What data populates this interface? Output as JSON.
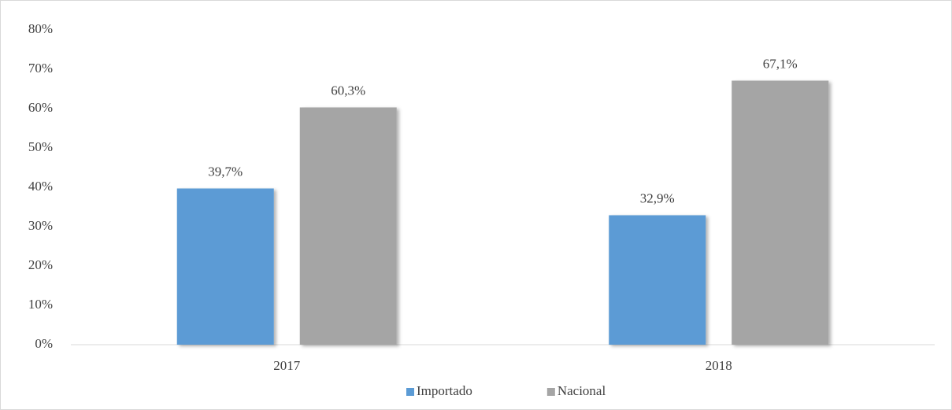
{
  "chart_data": {
    "type": "bar",
    "categories": [
      "2017",
      "2018"
    ],
    "series": [
      {
        "name": "Importado",
        "color": "#5b9bd5",
        "values": [
          39.7,
          32.9
        ],
        "value_labels": [
          "39,7%",
          "32,9%"
        ]
      },
      {
        "name": "Nacional",
        "color": "#a5a5a5",
        "values": [
          60.3,
          67.1
        ],
        "value_labels": [
          "60,3%",
          "67,1%"
        ]
      }
    ],
    "ylim": [
      0,
      80
    ],
    "yticks": [
      {
        "value": 0,
        "label": "0%"
      },
      {
        "value": 10,
        "label": "10%"
      },
      {
        "value": 20,
        "label": "20%"
      },
      {
        "value": 30,
        "label": "30%"
      },
      {
        "value": 40,
        "label": "40%"
      },
      {
        "value": 50,
        "label": "50%"
      },
      {
        "value": 60,
        "label": "60%"
      },
      {
        "value": 70,
        "label": "70%"
      },
      {
        "value": 80,
        "label": "80%"
      }
    ],
    "grid": false,
    "legend": "bottom"
  }
}
